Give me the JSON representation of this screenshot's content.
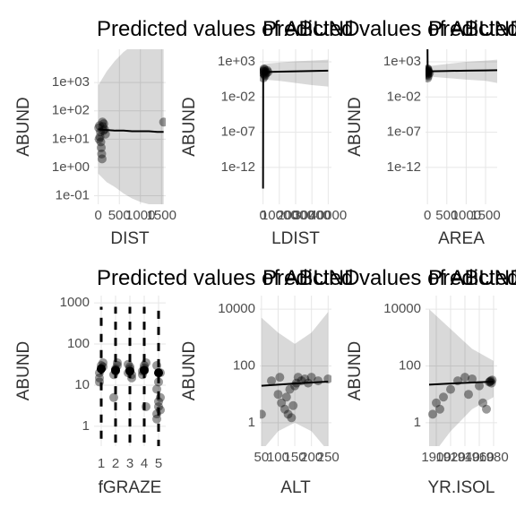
{
  "chart_data": [
    {
      "type": "line",
      "title": "Predicted values of ABUND",
      "xlabel": "DIST",
      "ylabel": "ABUND",
      "log_y": true,
      "grid": true,
      "x": [
        0,
        200,
        400,
        600,
        800,
        1000,
        1200,
        1400,
        1550
      ],
      "values": [
        22,
        21,
        20,
        20,
        19,
        19,
        19,
        18,
        18
      ],
      "ci_low": [
        0.6,
        0.3,
        0.2,
        0.12,
        0.08,
        0.06,
        0.05,
        0.04,
        0.03
      ],
      "ci_high": [
        800,
        2500,
        6000,
        12000,
        20000,
        30000,
        40000,
        50000,
        60000
      ],
      "points": {
        "x": [
          10,
          30,
          50,
          70,
          90,
          110,
          130,
          150,
          170,
          60,
          80,
          40,
          100,
          120,
          20,
          1550
        ],
        "y": [
          25,
          30,
          18,
          5,
          2,
          28,
          35,
          22,
          15,
          8,
          3,
          12,
          40,
          20,
          10,
          40
        ]
      },
      "xlim": [
        -100,
        1600
      ],
      "ylim": [
        0.05,
        15000
      ],
      "xticks": [
        0,
        500,
        1000,
        1500
      ],
      "yticks": [
        {
          "value": 0.1,
          "label": "1e-01"
        },
        {
          "value": 1,
          "label": "1e+00"
        },
        {
          "value": 10,
          "label": "1e+01"
        },
        {
          "value": 100,
          "label": "1e+02"
        },
        {
          "value": 1000,
          "label": "1e+03"
        }
      ]
    },
    {
      "type": "line",
      "title": "Predicted values of ABUND",
      "xlabel": "LDIST",
      "ylabel": "ABUND",
      "log_y": true,
      "grid": true,
      "x": [
        0,
        100,
        500,
        10000,
        20000,
        30000,
        40000
      ],
      "values": [
        1e-15,
        30,
        35,
        40,
        45,
        50,
        55
      ],
      "ci_low": [
        1e-17,
        5,
        3,
        2,
        1,
        0.5,
        0.3
      ],
      "ci_high": [
        10000,
        300,
        500,
        800,
        1200,
        1500,
        2000
      ],
      "points": {
        "x": [
          100,
          300,
          500,
          800,
          1200,
          1500,
          2000,
          2500,
          3000,
          200,
          600,
          1000,
          400
        ],
        "y": [
          30,
          50,
          20,
          80,
          10,
          40,
          25,
          60,
          35,
          5,
          100,
          15,
          45
        ]
      },
      "xlim": [
        -2000,
        42000
      ],
      "ylim": [
        6e-18,
        60000
      ],
      "xticks": [
        0,
        10000,
        20000,
        30000,
        40000
      ],
      "yticks": [
        {
          "value": 1e-12,
          "label": "1e-12"
        },
        {
          "value": 1e-07,
          "label": "1e-07"
        },
        {
          "value": 0.01,
          "label": "1e-02"
        },
        {
          "value": 1000,
          "label": "1e+03"
        }
      ]
    },
    {
      "type": "line",
      "title": "Predicted values of ABUND",
      "xlabel": "AREA",
      "ylabel": "ABUND",
      "log_y": true,
      "grid": true,
      "x": [
        0,
        5,
        50,
        500,
        1000,
        1500,
        1800
      ],
      "values": [
        1000000.0,
        40,
        45,
        50,
        55,
        60,
        65
      ],
      "ci_low": [
        1,
        5,
        8,
        5,
        3,
        2,
        1
      ],
      "ci_high": [
        100000000.0,
        300,
        250,
        500,
        1000,
        1500,
        2000
      ],
      "points": {
        "x": [
          1,
          2,
          5,
          10,
          20,
          30,
          50,
          3,
          8,
          15,
          4,
          6
        ],
        "y": [
          30,
          50,
          20,
          80,
          10,
          40,
          25,
          5,
          60,
          35,
          15,
          100
        ]
      },
      "xlim": [
        -50,
        1800
      ],
      "ylim": [
        6e-18,
        60000
      ],
      "xticks": [
        0,
        500,
        1000,
        1500
      ],
      "yticks": [
        {
          "value": 1e-12,
          "label": "1e-12"
        },
        {
          "value": 1e-07,
          "label": "1e-07"
        },
        {
          "value": 0.01,
          "label": "1e-02"
        },
        {
          "value": 1000,
          "label": "1e+03"
        }
      ]
    },
    {
      "type": "point",
      "title": "Predicted values of ABUND",
      "xlabel": "fGRAZE",
      "ylabel": "ABUND",
      "log_y": true,
      "grid": true,
      "categories": [
        "1",
        "2",
        "3",
        "4",
        "5"
      ],
      "values": [
        25,
        23,
        22,
        23,
        20
      ],
      "ci_low": [
        0.5,
        0.4,
        0.4,
        0.4,
        0.3
      ],
      "ci_high": [
        800,
        800,
        800,
        800,
        800
      ],
      "points": [
        [
          20,
          30,
          35,
          15,
          25,
          28,
          12
        ],
        [
          18,
          25,
          30,
          5,
          22,
          35
        ],
        [
          20,
          28,
          15,
          32,
          25,
          18
        ],
        [
          22,
          30,
          3,
          18,
          26,
          35
        ],
        [
          2,
          3,
          5,
          8,
          12,
          20,
          1.5,
          4,
          2.5,
          30
        ]
      ],
      "ylim": [
        0.33,
        1500
      ],
      "yticks": [
        1,
        10,
        100,
        1000
      ]
    },
    {
      "type": "line",
      "title": "Predicted values of ABUND",
      "xlabel": "ALT",
      "ylabel": "ABUND",
      "log_y": true,
      "grid": true,
      "x": [
        50,
        100,
        150,
        200,
        250
      ],
      "values": [
        20,
        22,
        24,
        26,
        28
      ],
      "ci_low": [
        0.1,
        0.5,
        1,
        0.5,
        0.1
      ],
      "ci_high": [
        5000,
        1500,
        600,
        1500,
        8000
      ],
      "points": {
        "x": [
          50,
          80,
          100,
          110,
          120,
          130,
          140,
          150,
          160,
          170,
          180,
          190,
          200,
          220,
          250,
          125,
          135,
          145,
          155,
          105
        ],
        "y": [
          2,
          30,
          10,
          5,
          3,
          2,
          1.5,
          20,
          40,
          30,
          35,
          25,
          40,
          30,
          35,
          8,
          15,
          4,
          25,
          40
        ]
      },
      "xlim": [
        45,
        260
      ],
      "ylim": [
        0.15,
        30000
      ],
      "xticks": [
        50,
        100,
        150,
        200,
        250
      ],
      "yticks": [
        1,
        100,
        10000
      ]
    },
    {
      "type": "line",
      "title": "Predicted values of ABUND",
      "xlabel": "YR.ISOL",
      "ylabel": "ABUND",
      "log_y": true,
      "grid": true,
      "x": [
        1890,
        1920,
        1950,
        1980
      ],
      "values": [
        22,
        24,
        26,
        28
      ],
      "ci_low": [
        0.05,
        0.5,
        3,
        8
      ],
      "ci_high": [
        10000,
        2000,
        400,
        150
      ],
      "points": {
        "x": [
          1895,
          1900,
          1905,
          1910,
          1920,
          1930,
          1940,
          1950,
          1960,
          1970,
          1975,
          1976,
          1977,
          1978,
          1974,
          1965,
          1945
        ],
        "y": [
          2,
          5,
          3,
          8,
          15,
          30,
          40,
          35,
          20,
          3,
          28,
          30,
          25,
          32,
          27,
          5,
          10
        ]
      },
      "xlim": [
        1885,
        1985
      ],
      "ylim": [
        0.15,
        30000
      ],
      "xticks": [
        1900,
        1920,
        1940,
        1960,
        1980
      ],
      "yticks": [
        1,
        100,
        10000
      ]
    }
  ]
}
